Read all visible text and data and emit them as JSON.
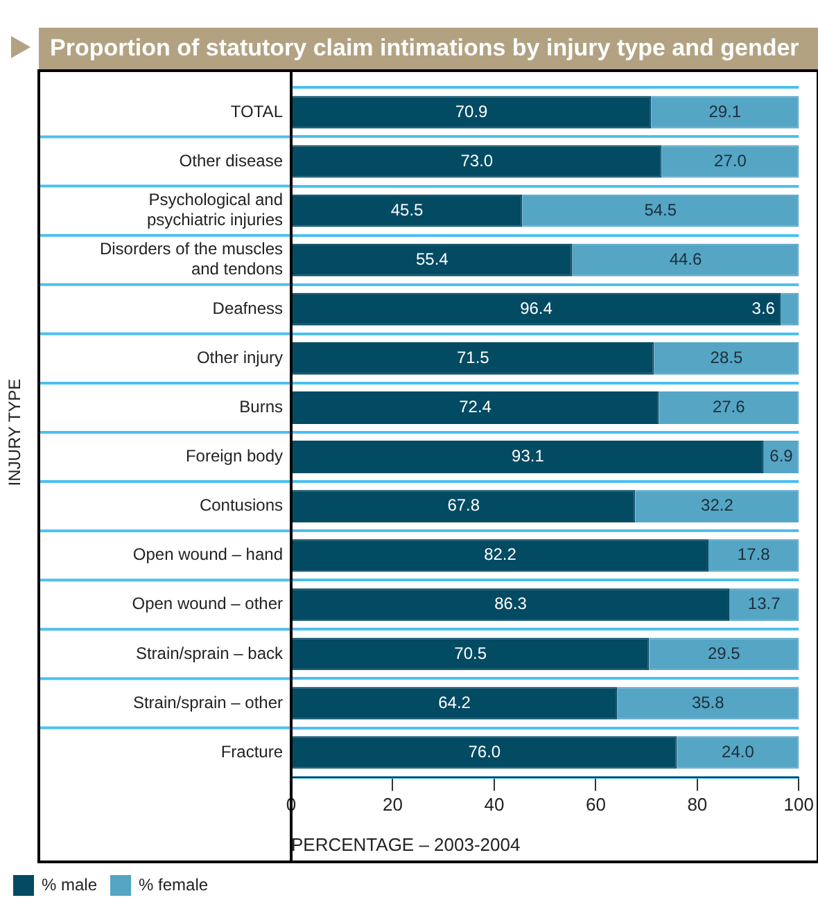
{
  "chart_data": {
    "type": "bar",
    "orientation": "horizontal",
    "stacked": true,
    "title": "Proportion of statutory claim intimations by injury type and gender",
    "xlabel": "PERCENTAGE – 2003-2004",
    "ylabel": "INJURY TYPE",
    "categories": [
      "TOTAL",
      "Other disease",
      "Psychological and psychiatric injuries",
      "Disorders of the muscles and tendons",
      "Deafness",
      "Other injury",
      "Burns",
      "Foreign body",
      "Contusions",
      "Open wound – hand",
      "Open wound – other",
      "Strain/sprain – back",
      "Strain/sprain – other",
      "Fracture"
    ],
    "series": [
      {
        "name": "% male",
        "color": "#034a63",
        "values": [
          70.9,
          73.0,
          45.5,
          55.4,
          96.4,
          71.5,
          72.4,
          93.1,
          67.8,
          82.2,
          86.3,
          70.5,
          64.2,
          76.0
        ]
      },
      {
        "name": "% female",
        "color": "#55a5c5",
        "values": [
          29.1,
          27.0,
          54.5,
          44.6,
          3.6,
          28.5,
          27.6,
          6.9,
          32.2,
          17.8,
          13.7,
          29.5,
          35.8,
          24.0
        ]
      }
    ],
    "value_labels": [
      [
        "70.9",
        "73.0",
        "45.5",
        "55.4",
        "96.4",
        "71.5",
        "72.4",
        "93.1",
        "67.8",
        "82.2",
        "86.3",
        "70.5",
        "64.2",
        "76.0"
      ],
      [
        "29.1",
        "27.0",
        "54.5",
        "44.6",
        "3.6",
        "28.5",
        "27.6",
        "6.9",
        "32.2",
        "17.8",
        "13.7",
        "29.5",
        "35.8",
        "24.0"
      ]
    ],
    "xlim": [
      0,
      100
    ],
    "xticks": [
      0,
      20,
      40,
      60,
      80,
      100
    ],
    "grid": "y",
    "legend": "bottom"
  }
}
